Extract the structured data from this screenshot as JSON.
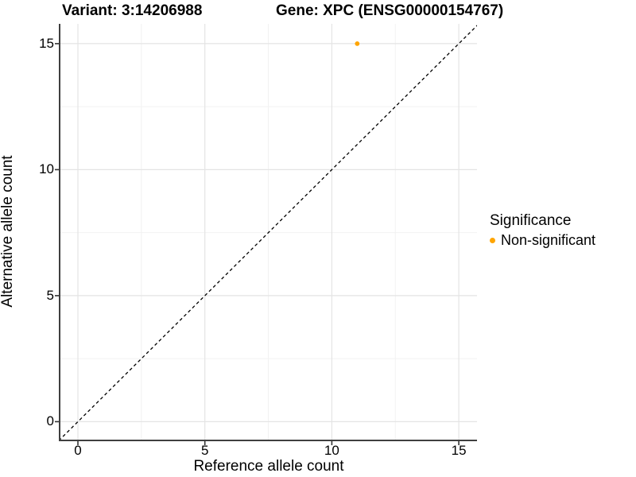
{
  "titles": {
    "variant": "Variant: 3:14206988",
    "gene": "Gene: XPC (ENSG00000154767)"
  },
  "axes": {
    "x": {
      "label": "Reference allele count",
      "ticks": [
        "0",
        "5",
        "10",
        "15"
      ]
    },
    "y": {
      "label": "Alternative allele count",
      "ticks": [
        "0",
        "5",
        "10",
        "15"
      ]
    }
  },
  "legend": {
    "title": "Significance",
    "items": [
      {
        "label": "Non-significant",
        "color": "#FFA500"
      }
    ]
  },
  "colors": {
    "point": "#FFA500",
    "grid_major": "#E4E4E4",
    "grid_minor": "#F2F2F2",
    "axis_line": "#3F3F3F",
    "tick_mark": "#333333",
    "identity_line": "#000000",
    "background": "#FFFFFF"
  },
  "chart_data": {
    "type": "scatter",
    "title": "Variant: 3:14206988 — Gene: XPC (ENSG00000154767)",
    "xlabel": "Reference allele count",
    "ylabel": "Alternative allele count",
    "xlim": [
      -0.72,
      15.75
    ],
    "ylim": [
      -0.72,
      15.79
    ],
    "x_major_ticks": [
      0,
      5,
      10,
      15
    ],
    "y_major_ticks": [
      0,
      5,
      10,
      15
    ],
    "x_minor_ticks": [
      2.5,
      7.5,
      12.5
    ],
    "y_minor_ticks": [
      2.5,
      7.5,
      12.5
    ],
    "grid": true,
    "legend_position": "right",
    "series": [
      {
        "name": "Non-significant",
        "color": "#FFA500",
        "points": [
          {
            "x": 11,
            "y": 15
          }
        ]
      }
    ],
    "reference_line": {
      "type": "identity",
      "equation": "y = x",
      "style": "dashed",
      "color": "#000000"
    }
  }
}
